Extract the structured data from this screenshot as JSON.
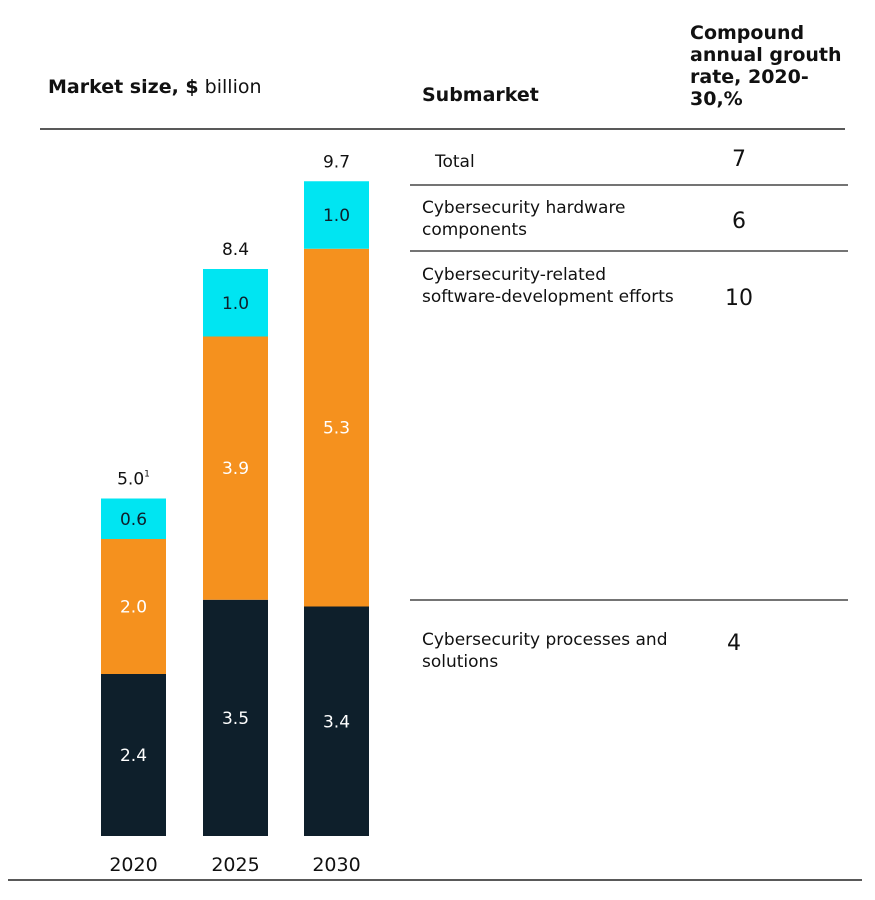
{
  "header": {
    "title_bold": "Market size, $",
    "title_rest": " billion",
    "submarket": "Submarket",
    "cagr": "Compound annual grouth rate, 2020-30,%"
  },
  "rows": [
    {
      "label": "Total",
      "value": "7"
    },
    {
      "label": "Cybersecurity hardware components",
      "value": "6"
    },
    {
      "label": "Cybersecurity-related software-development efforts",
      "value": "10"
    },
    {
      "label": "Cybersecurity processes and solutions",
      "value": "4"
    }
  ],
  "chart_data": {
    "type": "bar",
    "stacked": true,
    "categories": [
      "2020",
      "2025",
      "2030"
    ],
    "series": [
      {
        "name": "Cybersecurity processes and solutions",
        "values": [
          2.4,
          3.5,
          3.4
        ],
        "color": "#0e1f2b"
      },
      {
        "name": "Cybersecurity-related software-development efforts",
        "values": [
          2.0,
          3.9,
          5.3
        ],
        "color": "#f5911e"
      },
      {
        "name": "Cybersecurity hardware components",
        "values": [
          0.6,
          1.0,
          1.0
        ],
        "color": "#00e5f2"
      }
    ],
    "totals": [
      "5.0",
      "8.4",
      "9.7"
    ],
    "total_footnote": [
      "1",
      "",
      ""
    ],
    "ylim": [
      0,
      10
    ]
  },
  "colors": {
    "dark": "#0e1f2b",
    "orange": "#f5911e",
    "cyan": "#00e5f2"
  }
}
